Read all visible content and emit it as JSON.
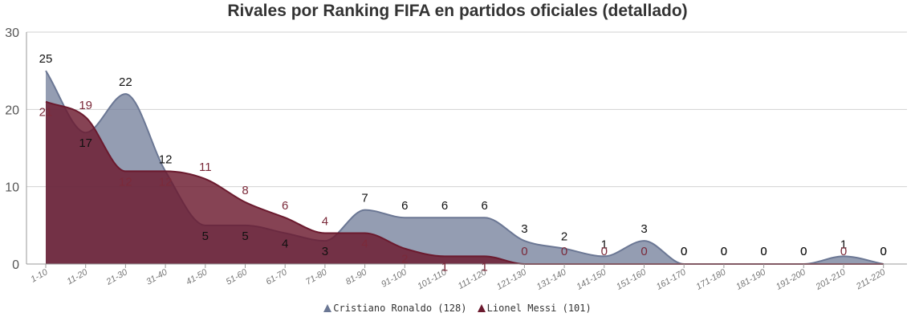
{
  "chart_data": {
    "type": "area",
    "title": "Rivales por Ranking FIFA en partidos oficiales (detallado)",
    "xlabel": "",
    "ylabel": "",
    "ylim": [
      0,
      30
    ],
    "yticks": [
      "0",
      "10",
      "20",
      "30"
    ],
    "grid": true,
    "legend_position": "bottom-center",
    "categories": [
      "1-10",
      "11-20",
      "21-30",
      "31-40",
      "41-50",
      "51-60",
      "61-70",
      "71-80",
      "81-90",
      "91-100",
      "101-110",
      "111-120",
      "121-130",
      "131-140",
      "141-150",
      "151-160",
      "161-170",
      "171-180",
      "181-190",
      "191-200",
      "201-210",
      "211-220"
    ],
    "series": [
      {
        "name": "Cristiano Ronaldo (128)",
        "color": "#6b7794",
        "label_color": "#111111",
        "values": [
          25,
          17,
          22,
          12,
          5,
          5,
          4,
          3,
          7,
          6,
          6,
          6,
          3,
          2,
          1,
          3,
          0,
          0,
          0,
          0,
          1,
          0
        ]
      },
      {
        "name": "Lionel Messi (101)",
        "color": "#6b1a2e",
        "label_color": "#7b2a3a",
        "values": [
          21,
          19,
          12,
          12,
          11,
          8,
          6,
          4,
          4,
          2,
          1,
          1,
          0,
          0,
          0,
          0,
          0,
          0,
          0,
          0,
          0,
          0
        ]
      }
    ]
  }
}
